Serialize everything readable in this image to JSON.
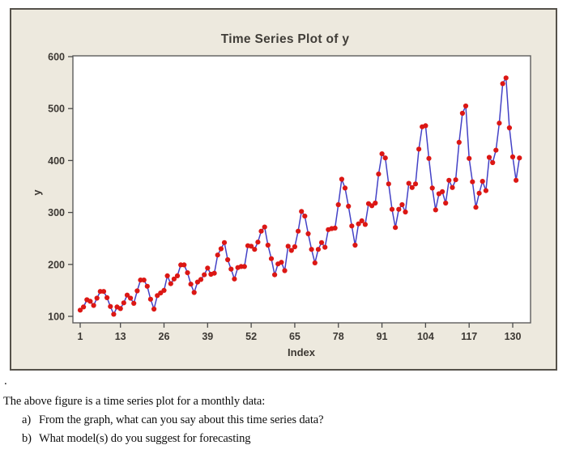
{
  "chart_data": {
    "type": "line",
    "title": "Time Series Plot of y",
    "xlabel": "Index",
    "ylabel": "y",
    "x_start": 1,
    "values": [
      112,
      118,
      132,
      129,
      121,
      135,
      148,
      148,
      136,
      119,
      104,
      118,
      115,
      126,
      141,
      135,
      125,
      149,
      170,
      170,
      158,
      133,
      114,
      140,
      145,
      150,
      178,
      163,
      172,
      178,
      199,
      199,
      184,
      162,
      146,
      166,
      171,
      180,
      193,
      181,
      183,
      218,
      230,
      242,
      209,
      191,
      172,
      194,
      196,
      196,
      236,
      235,
      229,
      243,
      264,
      272,
      237,
      211,
      180,
      201,
      204,
      188,
      235,
      227,
      234,
      264,
      302,
      293,
      259,
      229,
      203,
      229,
      242,
      233,
      267,
      269,
      270,
      315,
      364,
      347,
      312,
      274,
      237,
      278,
      284,
      277,
      317,
      313,
      318,
      374,
      413,
      405,
      355,
      306,
      271,
      306,
      315,
      301,
      356,
      348,
      355,
      422,
      465,
      467,
      404,
      347,
      305,
      336,
      340,
      318,
      362,
      348,
      363,
      435,
      491,
      505,
      404,
      359,
      310,
      337,
      360,
      342,
      406,
      396,
      420,
      472,
      548,
      559,
      463,
      407,
      362,
      405
    ],
    "xticks": [
      1,
      13,
      26,
      39,
      52,
      65,
      78,
      91,
      104,
      117,
      130
    ],
    "yticks": [
      100,
      200,
      300,
      400,
      500,
      600
    ],
    "ylim": [
      87,
      600
    ],
    "xlim": [
      -1,
      135
    ],
    "grid": false,
    "legend": "none",
    "line_color": "#4341c6",
    "marker_color": "#dc1714",
    "plot_bg": "#ffffff",
    "figure_bg": "#ede9de",
    "frame_color": "#5c5c5c",
    "tick_color": "#4a4a4a"
  },
  "caption": {
    "dot": ".",
    "intro": "The above figure is a time series plot for a monthly data:",
    "items": [
      {
        "marker": "a)",
        "text": "From the graph, what can you say about this time series data?"
      },
      {
        "marker": "b)",
        "text": "What model(s) do you suggest for forecasting"
      }
    ]
  }
}
